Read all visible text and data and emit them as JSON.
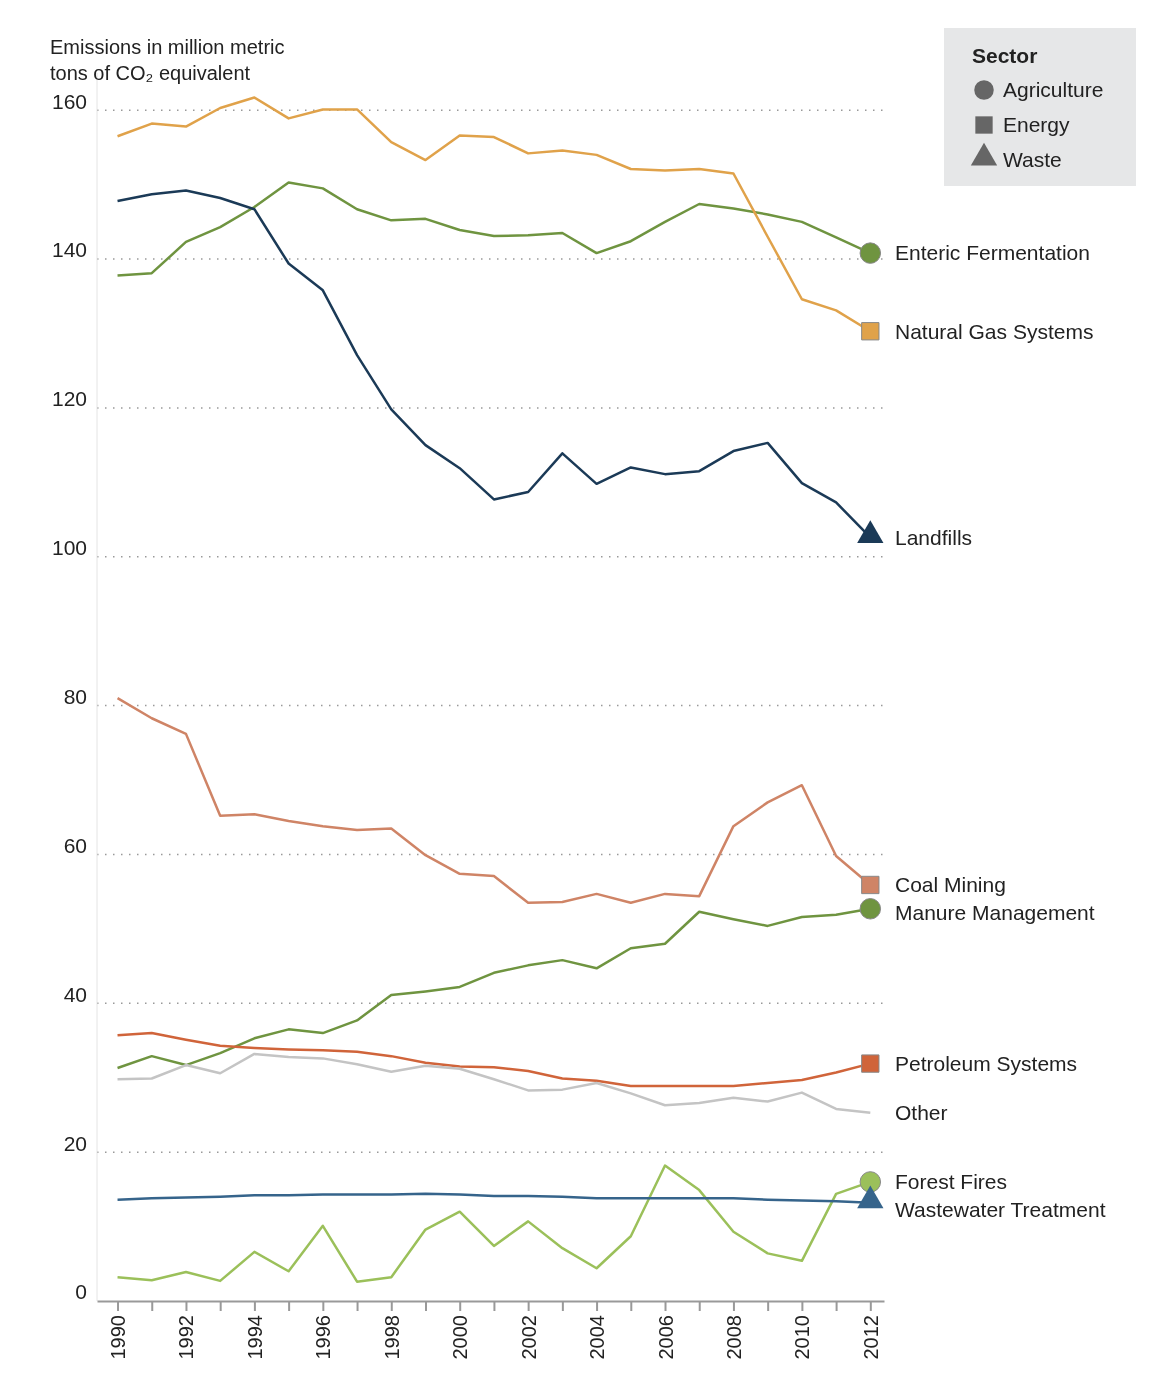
{
  "chart_data": {
    "type": "line",
    "ylabel": "Emissions in million metric tons of CO₂ equivalent",
    "legend_title": "Sector",
    "legend": "right",
    "annotations": [
      "Agriculture",
      "Energy",
      "Waste"
    ],
    "grid": "y",
    "x": [
      1990,
      1991,
      1992,
      1993,
      1994,
      1995,
      1996,
      1997,
      1998,
      1999,
      2000,
      2001,
      2002,
      2003,
      2004,
      2005,
      2006,
      2007,
      2008,
      2009,
      2010,
      2011,
      2012
    ],
    "xlim": [
      1989.4,
      2012.4
    ],
    "xticks": [
      1990,
      {
        "value": 1991,
        "label": null
      },
      1992,
      {
        "value": 1993,
        "label": null
      },
      1994,
      {
        "value": 1995,
        "label": null
      },
      1996,
      {
        "value": 1997,
        "label": null
      },
      1998,
      {
        "value": 1999,
        "label": null
      },
      2000,
      {
        "value": 2001,
        "label": null
      },
      2002,
      {
        "value": 2003,
        "label": null
      },
      2004,
      {
        "value": 2005,
        "label": null
      },
      2006,
      {
        "value": 2007,
        "label": null
      },
      2008,
      {
        "value": 2009,
        "label": null
      },
      2010,
      {
        "value": 2011,
        "label": null
      },
      2012
    ],
    "ylim": [
      0,
      165
    ],
    "yticks": [
      0,
      20,
      40,
      60,
      80,
      100,
      120,
      140,
      160
    ],
    "series": [
      {
        "name": "Enteric Fermentation",
        "color": "#6f9440",
        "values": [
          137.8,
          138.1,
          142.3,
          144.3,
          147,
          150.3,
          149.5,
          146.7,
          145.2,
          145.4,
          143.9,
          143.1,
          143.2,
          143.5,
          140.8,
          142.4,
          145,
          147.4,
          146.8,
          146,
          145,
          142.9,
          140.8
        ]
      },
      {
        "name": "Natural Gas Systems",
        "color": "#e0a24a",
        "values": [
          156.5,
          158.2,
          157.8,
          160.3,
          161.7,
          158.9,
          160.1,
          160.1,
          155.7,
          153.3,
          156.6,
          156.4,
          154.2,
          154.6,
          154,
          152.1,
          151.9,
          152.1,
          151.5,
          143,
          134.6,
          133.1,
          130.3
        ]
      },
      {
        "name": "Landfills",
        "color": "#1b3a57",
        "values": [
          147.8,
          148.7,
          149.2,
          148.2,
          146.7,
          139.4,
          135.8,
          127.1,
          119.8,
          115,
          111.9,
          107.7,
          108.7,
          113.9,
          109.8,
          112,
          111.1,
          111.5,
          114.2,
          115.3,
          109.9,
          107.3,
          102.6
        ]
      },
      {
        "name": "Coal Mining",
        "color": "#cf8466",
        "values": [
          81,
          78.3,
          76.2,
          65.2,
          65.4,
          64.5,
          63.8,
          63.3,
          63.5,
          59.9,
          57.4,
          57.1,
          53.5,
          53.6,
          54.7,
          53.5,
          54.7,
          54.4,
          63.8,
          67,
          69.3,
          59.8,
          55.9
        ]
      },
      {
        "name": "Manure Management",
        "color": "#6f9440",
        "values": [
          31.3,
          32.9,
          31.7,
          33.3,
          35.3,
          36.5,
          36,
          37.7,
          41.1,
          41.6,
          42.2,
          44.1,
          45.1,
          45.8,
          44.7,
          47.4,
          48,
          52.3,
          51.3,
          50.4,
          51.6,
          51.9,
          52.7
        ]
      },
      {
        "name": "Petroleum Systems",
        "color": "#d0643a",
        "values": [
          35.7,
          36,
          35.1,
          34.3,
          34,
          33.8,
          33.7,
          33.5,
          32.9,
          32,
          31.5,
          31.4,
          30.9,
          29.9,
          29.6,
          28.9,
          28.9,
          28.9,
          28.9,
          29.3,
          29.7,
          30.7,
          31.9
        ]
      },
      {
        "name": "Other",
        "color": "#c4c4c4",
        "values": [
          29.8,
          29.9,
          31.7,
          30.6,
          33.2,
          32.8,
          32.6,
          31.8,
          30.8,
          31.6,
          31.2,
          29.8,
          28.3,
          28.4,
          29.3,
          27.9,
          26.3,
          26.6,
          27.3,
          26.8,
          28,
          25.8,
          25.3
        ]
      },
      {
        "name": "Forest Fires",
        "color": "#9bc05a",
        "values": [
          3.2,
          2.8,
          3.9,
          2.7,
          6.6,
          4,
          10.1,
          2.6,
          3.2,
          9.6,
          12,
          7.4,
          10.7,
          7.1,
          4.4,
          8.7,
          18.2,
          14.9,
          9.3,
          6.4,
          5.4,
          14.4,
          16
        ]
      },
      {
        "name": "Wastewater Treatment",
        "color": "#36648b",
        "values": [
          13.6,
          13.8,
          13.9,
          14,
          14.2,
          14.2,
          14.3,
          14.3,
          14.3,
          14.4,
          14.3,
          14.1,
          14.1,
          14,
          13.8,
          13.8,
          13.8,
          13.8,
          13.8,
          13.6,
          13.5,
          13.4,
          13.2
        ]
      },
      {
        "type": "scatter",
        "color": "#6f9440",
        "marker": "circle",
        "values": [
          null,
          null,
          null,
          null,
          null,
          null,
          null,
          null,
          null,
          null,
          null,
          null,
          null,
          null,
          null,
          null,
          null,
          null,
          null,
          null,
          null,
          null,
          140.8
        ]
      },
      {
        "type": "scatter",
        "color": "#e0a24a",
        "marker": "square",
        "values": [
          null,
          null,
          null,
          null,
          null,
          null,
          null,
          null,
          null,
          null,
          null,
          null,
          null,
          null,
          null,
          null,
          null,
          null,
          null,
          null,
          null,
          null,
          130.3
        ]
      },
      {
        "type": "scatter",
        "color": "#1b3a57",
        "marker": "triangle",
        "values": [
          null,
          null,
          null,
          null,
          null,
          null,
          null,
          null,
          null,
          null,
          null,
          null,
          null,
          null,
          null,
          null,
          null,
          null,
          null,
          null,
          null,
          null,
          102.6
        ]
      },
      {
        "type": "scatter",
        "color": "#cf8466",
        "marker": "square",
        "values": [
          null,
          null,
          null,
          null,
          null,
          null,
          null,
          null,
          null,
          null,
          null,
          null,
          null,
          null,
          null,
          null,
          null,
          null,
          null,
          null,
          null,
          null,
          55.9
        ]
      },
      {
        "type": "scatter",
        "color": "#6f9440",
        "marker": "circle",
        "values": [
          null,
          null,
          null,
          null,
          null,
          null,
          null,
          null,
          null,
          null,
          null,
          null,
          null,
          null,
          null,
          null,
          null,
          null,
          null,
          null,
          null,
          null,
          52.7
        ]
      },
      {
        "type": "scatter",
        "color": "#d0643a",
        "marker": "square",
        "values": [
          null,
          null,
          null,
          null,
          null,
          null,
          null,
          null,
          null,
          null,
          null,
          null,
          null,
          null,
          null,
          null,
          null,
          null,
          null,
          null,
          null,
          null,
          31.9
        ]
      },
      {
        "type": "scatter",
        "color": "#9bc05a",
        "marker": "circle",
        "values": [
          null,
          null,
          null,
          null,
          null,
          null,
          null,
          null,
          null,
          null,
          null,
          null,
          null,
          null,
          null,
          null,
          null,
          null,
          null,
          null,
          null,
          null,
          16
        ]
      },
      {
        "type": "scatter",
        "color": "#36648b",
        "marker": "triangle",
        "values": [
          null,
          null,
          null,
          null,
          null,
          null,
          null,
          null,
          null,
          null,
          null,
          null,
          null,
          null,
          null,
          null,
          null,
          null,
          null,
          null,
          null,
          null,
          13.2
        ]
      }
    ]
  }
}
